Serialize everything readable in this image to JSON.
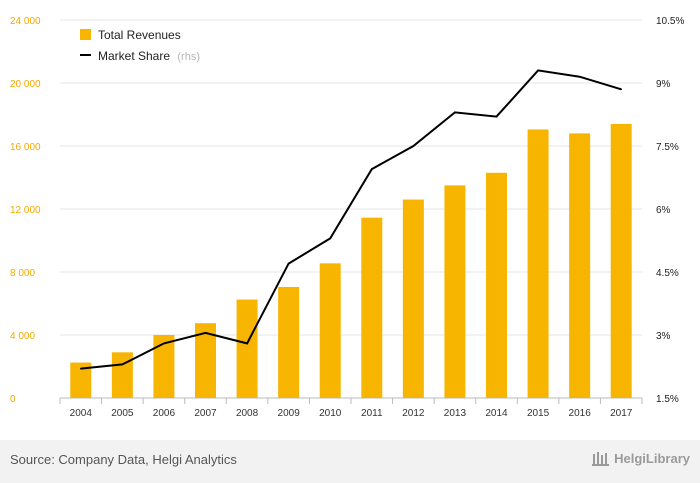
{
  "chart_data": {
    "type": "bar",
    "categories": [
      "2004",
      "2005",
      "2006",
      "2007",
      "2008",
      "2009",
      "2010",
      "2011",
      "2012",
      "2013",
      "2014",
      "2015",
      "2016",
      "2017"
    ],
    "series": [
      {
        "name": "Total Revenues",
        "type": "bar",
        "axis": "left",
        "color": "#f7b500",
        "values": [
          2250,
          2900,
          4000,
          4750,
          6250,
          7050,
          8550,
          11450,
          12600,
          13500,
          14300,
          17050,
          16800,
          17400
        ]
      },
      {
        "name": "Market Share",
        "type": "line",
        "axis": "right",
        "color": "#000000",
        "values": [
          2.2,
          2.3,
          2.8,
          3.05,
          2.8,
          4.7,
          5.3,
          6.95,
          7.5,
          8.3,
          8.2,
          9.3,
          9.15,
          8.85
        ]
      }
    ],
    "legend": {
      "position": "top-left",
      "items": [
        {
          "label": "Total Revenues",
          "note": ""
        },
        {
          "label": "Market Share",
          "note": "(rhs)"
        }
      ]
    },
    "yaxis_left": {
      "range": [
        0,
        24000
      ],
      "ticks": [
        0,
        4000,
        8000,
        12000,
        16000,
        20000,
        24000
      ],
      "tick_labels": [
        "0",
        "4 000",
        "8 000",
        "12 000",
        "16 000",
        "20 000",
        "24 000"
      ]
    },
    "yaxis_right": {
      "range": [
        1.5,
        10.5
      ],
      "ticks": [
        1.5,
        3,
        4.5,
        6,
        7.5,
        9,
        10.5
      ],
      "tick_labels": [
        "1.5%",
        "3%",
        "4.5%",
        "6%",
        "7.5%",
        "9%",
        "10.5%"
      ]
    },
    "grid": true
  },
  "footer": {
    "source": "Source: Company Data, Helgi Analytics",
    "logo_text": "HelgiLibrary"
  },
  "colors": {
    "bar": "#f7b500",
    "line": "#000000",
    "left_axis_text": "#f2a900",
    "grid": "#e6e6e6",
    "footer_bg": "#f2f2f2"
  }
}
